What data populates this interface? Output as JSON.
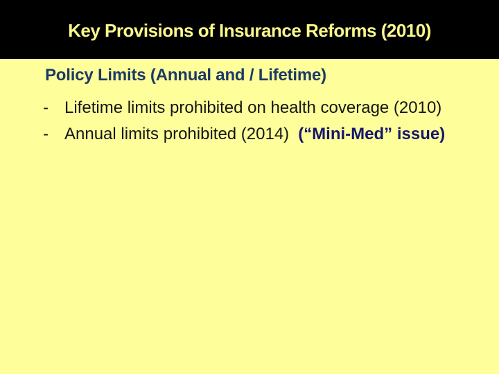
{
  "slide": {
    "title": "Key Provisions of Insurance Reforms (2010)",
    "section_heading": "Policy Limits (Annual and / Lifetime)",
    "bullets": [
      {
        "marker": "-",
        "text": "Lifetime limits prohibited on health coverage (2010)",
        "highlight": ""
      },
      {
        "marker": "-",
        "text": "Annual limits prohibited (2014)",
        "highlight": "(“Mini-Med” issue)"
      }
    ],
    "colors": {
      "background": "#FEFE9B",
      "title_band": "#000000",
      "title_text": "#F9F88C",
      "heading_text": "#1C3A64",
      "body_text": "#151515",
      "highlight_text": "#16166E"
    }
  }
}
